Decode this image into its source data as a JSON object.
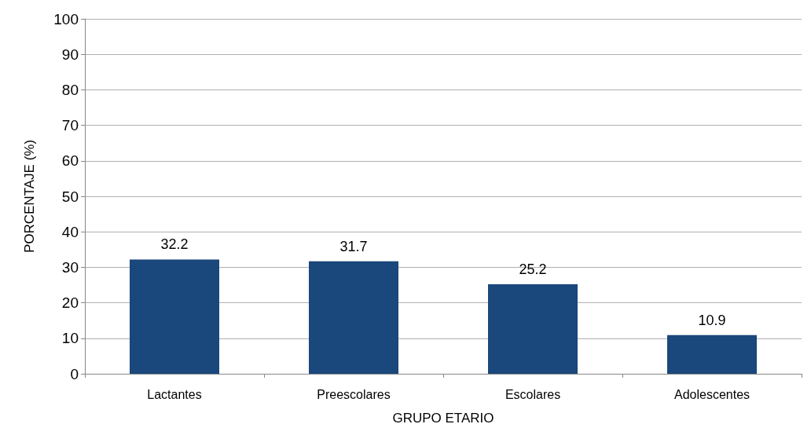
{
  "chart_data": {
    "type": "bar",
    "xlabel": "GRUPO ETARIO",
    "ylabel": "PORCENTAJE (%)",
    "categories": [
      "Lactantes",
      "Preescolares",
      "Escolares",
      "Adolescentes"
    ],
    "values": [
      32.2,
      31.7,
      25.2,
      10.9
    ],
    "color": "#1a477c",
    "ylim": [
      0,
      100
    ],
    "yticks": [
      0,
      10,
      20,
      30,
      40,
      50,
      60,
      70,
      80,
      90,
      100
    ],
    "grid": "y",
    "data_labels": true
  }
}
